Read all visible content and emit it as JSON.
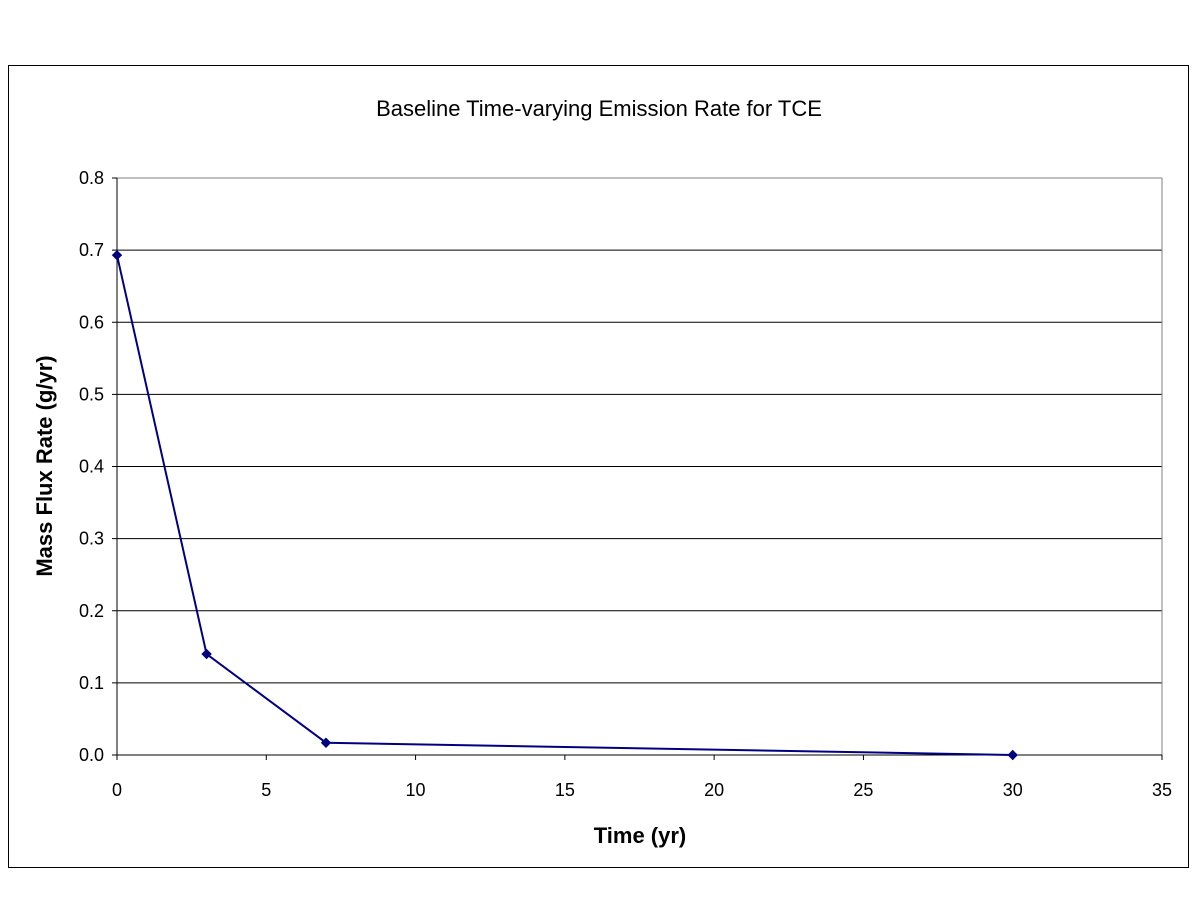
{
  "chart_data": {
    "type": "line",
    "title": "Baseline Time-varying Emission Rate for TCE",
    "xlabel": "Time (yr)",
    "ylabel": "Mass Flux Rate (g/yr)",
    "xlim": [
      0,
      35
    ],
    "ylim": [
      0,
      0.8
    ],
    "xticks": [
      0,
      5,
      10,
      15,
      20,
      25,
      30,
      35
    ],
    "yticks": [
      0.0,
      0.1,
      0.2,
      0.3,
      0.4,
      0.5,
      0.6,
      0.7,
      0.8
    ],
    "xtick_labels": [
      "0",
      "5",
      "10",
      "15",
      "20",
      "25",
      "30",
      "35"
    ],
    "ytick_labels": [
      "0.0",
      "0.1",
      "0.2",
      "0.3",
      "0.4",
      "0.5",
      "0.6",
      "0.7",
      "0.8"
    ],
    "grid": "horizontal",
    "legend": "none",
    "series": [
      {
        "x": [
          0,
          3,
          7,
          30
        ],
        "y": [
          0.693,
          0.14,
          0.017,
          0.0
        ]
      }
    ],
    "colors": {
      "series": "#000080",
      "grid": "#000000",
      "plot_border": "#808080"
    }
  }
}
